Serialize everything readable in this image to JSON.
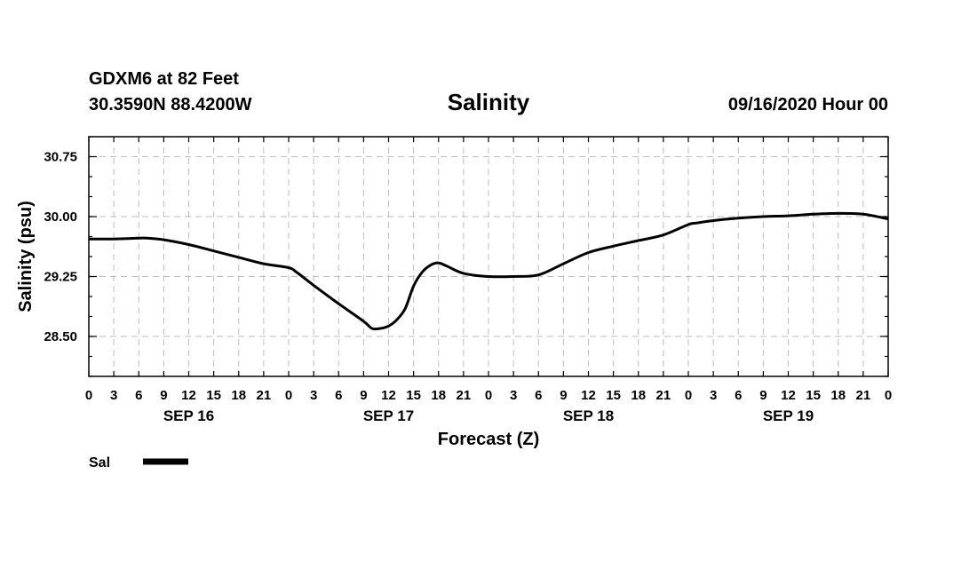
{
  "header": {
    "station": "GDXM6 at 82 Feet",
    "coords": "30.3590N 88.4200W",
    "title": "Salinity",
    "datetime": "09/16/2020 Hour 00"
  },
  "colors": {
    "line": "#000000",
    "grid": "#bdbdbd",
    "background": "#ffffff"
  },
  "chart_data": {
    "type": "line",
    "title": "Salinity",
    "xlabel": "Forecast (Z)",
    "ylabel": "Salinity (psu)",
    "xlim": [
      0,
      96
    ],
    "ylim": [
      28.0,
      31.0
    ],
    "grid": true,
    "legend_position": "bottom-left",
    "y_ticks": [
      {
        "value": 28.5,
        "label": "28.50"
      },
      {
        "value": 29.25,
        "label": "29.25"
      },
      {
        "value": 30.0,
        "label": "30.00"
      },
      {
        "value": 30.75,
        "label": "30.75"
      }
    ],
    "x_tick_labels": [
      "0",
      "3",
      "6",
      "9",
      "12",
      "15",
      "18",
      "21",
      "0",
      "3",
      "6",
      "9",
      "12",
      "15",
      "18",
      "21",
      "0",
      "3",
      "6",
      "9",
      "12",
      "15",
      "18",
      "21",
      "0",
      "3",
      "6",
      "9",
      "12",
      "15",
      "18",
      "21",
      "0"
    ],
    "x_tick_step_hours": 3,
    "day_labels": [
      {
        "label": "SEP 16",
        "hour": 12
      },
      {
        "label": "SEP 17",
        "hour": 36
      },
      {
        "label": "SEP 18",
        "hour": 60
      },
      {
        "label": "SEP 19",
        "hour": 84
      }
    ],
    "series": [
      {
        "name": "Sal",
        "x": [
          0,
          3,
          6,
          7,
          9,
          12,
          15,
          18,
          21,
          24,
          25,
          27,
          30,
          33,
          34,
          35,
          36,
          37,
          38,
          39,
          40,
          41,
          42,
          43,
          45,
          48,
          51,
          54,
          57,
          60,
          63,
          66,
          69,
          72,
          73,
          75,
          78,
          81,
          84,
          87,
          90,
          93,
          96
        ],
        "values": [
          29.72,
          29.72,
          29.73,
          29.73,
          29.71,
          29.65,
          29.57,
          29.49,
          29.41,
          29.36,
          29.3,
          29.14,
          28.91,
          28.69,
          28.6,
          28.6,
          28.63,
          28.71,
          28.85,
          29.13,
          29.3,
          29.39,
          29.42,
          29.38,
          29.29,
          29.25,
          29.25,
          29.27,
          29.41,
          29.55,
          29.63,
          29.7,
          29.77,
          29.9,
          29.92,
          29.95,
          29.98,
          30.0,
          30.01,
          30.03,
          30.04,
          30.03,
          29.97
        ]
      }
    ]
  },
  "legend": [
    {
      "label": "Sal"
    }
  ]
}
